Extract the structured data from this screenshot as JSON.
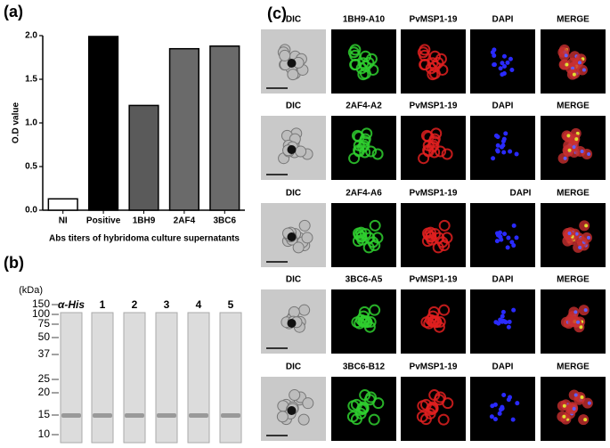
{
  "chart_data": {
    "type": "bar",
    "panel_label": "(a)",
    "categories": [
      "NI",
      "Positive",
      "1BH9",
      "2AF4",
      "3BC6"
    ],
    "values": [
      0.13,
      1.99,
      1.2,
      1.85,
      1.88
    ],
    "colors": [
      "#ffffff",
      "#000000",
      "#5a5a5a",
      "#6a6a6a",
      "#6a6a6a"
    ],
    "ylabel": "O.D value",
    "xlabel": "Abs titers of  hybridoma culture supernatants",
    "ylim": [
      0,
      2.0
    ],
    "yticks": [
      {
        "value": 0,
        "label": "0.0"
      },
      0.5,
      {
        "value": 1,
        "label": "1.0"
      },
      1.5,
      {
        "value": 2,
        "label": "2.0"
      }
    ]
  },
  "panel_b": {
    "panel_label": "(b)",
    "unit": "(kDa)",
    "lanes": [
      "α-His",
      "1",
      "2",
      "3",
      "4",
      "5"
    ],
    "markers": [
      "150",
      "100",
      "75",
      "50",
      "37",
      "25",
      "20",
      "15",
      "10"
    ]
  },
  "panel_c": {
    "panel_label": "(c)",
    "rows": [
      {
        "labels": [
          "DIC",
          "1BH9-A10",
          "PvMSP1-19",
          "DAPI",
          "MERGE"
        ]
      },
      {
        "labels": [
          "DIC",
          "2AF4-A2",
          "PvMSP1-19",
          "DAPI",
          "MERGE"
        ]
      },
      {
        "labels": [
          "DIC",
          "2AF4-A6",
          "PvMSP1-19",
          "DAPI",
          "MERGE"
        ]
      },
      {
        "labels": [
          "DIC",
          "3BC6-A5",
          "PvMSP1-19",
          "DAPI",
          "MERGE"
        ]
      },
      {
        "labels": [
          "DIC",
          "3BC6-B12",
          "PvMSP1-19",
          "DAPI",
          "MERGE"
        ]
      }
    ]
  }
}
